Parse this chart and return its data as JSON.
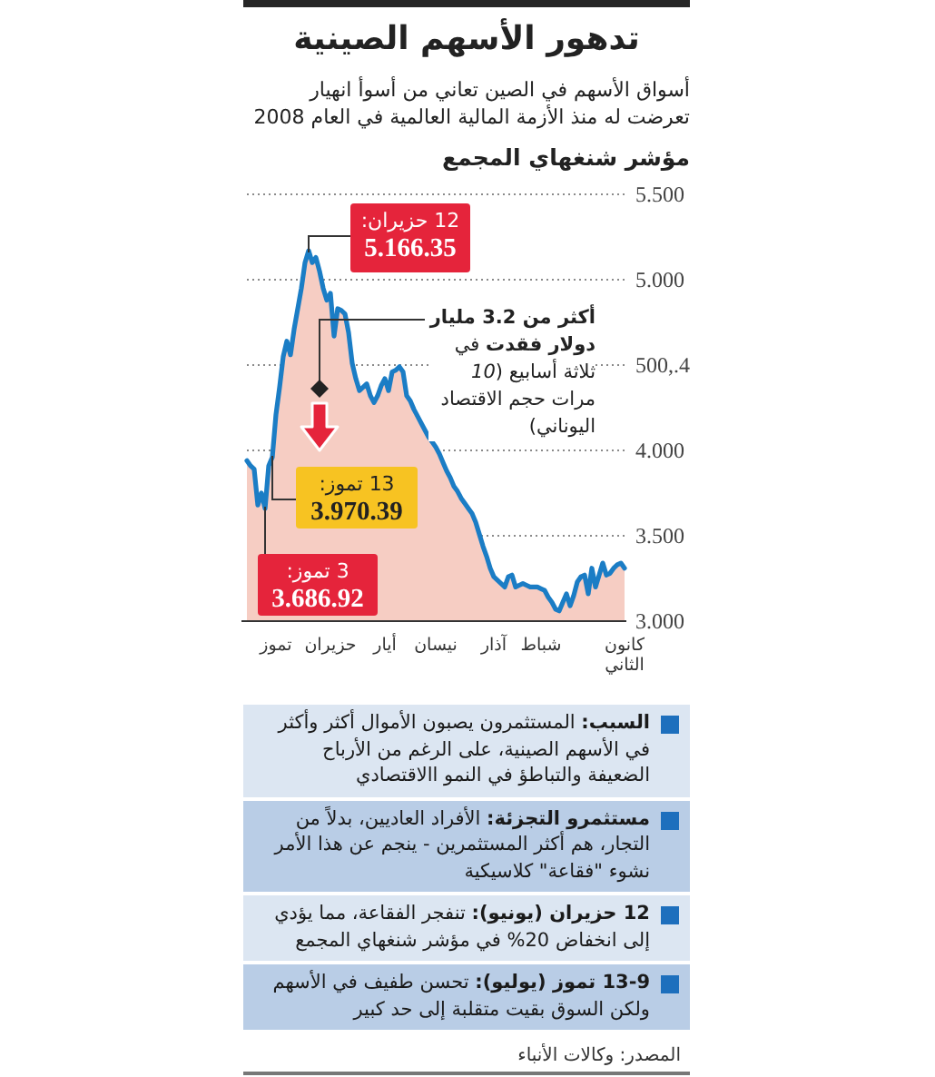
{
  "chart_data": {
    "type": "area",
    "title": "تدهور الأسهم الصينية",
    "subtitle": "أسواق الأسهم في الصين تعاني من أسوأ انهيار تعرضت له منذ الأزمة المالية العالمية في العام 2008",
    "ylabel": "مؤشر شنغهاي المجمع",
    "categories": [
      null,
      null,
      null,
      null,
      null,
      null,
      null,
      null,
      "تموز",
      null,
      null,
      null,
      null,
      null,
      null,
      null,
      null,
      null,
      null,
      null,
      null,
      null,
      null,
      "حزيران",
      null,
      null,
      null,
      null,
      null,
      null,
      null,
      null,
      null,
      null,
      null,
      null,
      null,
      null,
      "أيار",
      null,
      null,
      null,
      null,
      null,
      null,
      null,
      null,
      null,
      null,
      null,
      null,
      null,
      "نيسان",
      null,
      null,
      null,
      null,
      null,
      null,
      null,
      null,
      null,
      null,
      null,
      null,
      null,
      null,
      null,
      "آذار",
      null,
      null,
      null,
      null,
      null,
      null,
      null,
      null,
      null,
      null,
      null,
      null,
      "شباط",
      null,
      null,
      null,
      null,
      null,
      null,
      null,
      null,
      null,
      null,
      null,
      null,
      null,
      null,
      null,
      null,
      null,
      null,
      null,
      null,
      null,
      null,
      "كانون الثاني"
    ],
    "series": [
      {
        "color": "#f6cdc3",
        "values": [
          3940,
          3910,
          3890,
          3680,
          3750,
          3660,
          3910,
          3960,
          4210,
          4370,
          4550,
          4640,
          4560,
          4710,
          4830,
          4950,
          5100,
          5170,
          5100,
          5130,
          5050,
          4950,
          4880,
          4920,
          4670,
          4830,
          4820,
          4800,
          4690,
          4510,
          4420,
          4350,
          4370,
          4390,
          4320,
          4280,
          4320,
          4380,
          4420,
          4350,
          4460,
          4470,
          4490,
          4460,
          4320,
          4290,
          4240,
          4200,
          4160,
          4120,
          4080,
          4050,
          4020,
          3980,
          3930,
          3880,
          3840,
          3790,
          3760,
          3720,
          3690,
          3660,
          3630,
          3580,
          3510,
          3440,
          3380,
          3310,
          3260,
          3240,
          3220,
          3200,
          3260,
          3270,
          3200,
          3210,
          3220,
          3210,
          3200,
          3200,
          3200,
          3190,
          3180,
          3140,
          3110,
          3070,
          3060,
          3110,
          3160,
          3090,
          3150,
          3230,
          3260,
          3270,
          3160,
          3310,
          3200,
          3270,
          3340,
          3270,
          3280,
          3310,
          3330,
          3340,
          3310
        ]
      },
      {
        "type": "line",
        "color": "#1b7dc5",
        "values": [
          3940,
          3910,
          3890,
          3680,
          3750,
          3660,
          3910,
          3960,
          4210,
          4370,
          4550,
          4640,
          4560,
          4710,
          4830,
          4950,
          5100,
          5170,
          5100,
          5130,
          5050,
          4950,
          4880,
          4920,
          4670,
          4830,
          4820,
          4800,
          4690,
          4510,
          4420,
          4350,
          4370,
          4390,
          4320,
          4280,
          4320,
          4380,
          4420,
          4350,
          4460,
          4470,
          4490,
          4460,
          4320,
          4290,
          4240,
          4200,
          4160,
          4120,
          4080,
          4050,
          4020,
          3980,
          3930,
          3880,
          3840,
          3790,
          3760,
          3720,
          3690,
          3660,
          3630,
          3580,
          3510,
          3440,
          3380,
          3310,
          3260,
          3240,
          3220,
          3200,
          3260,
          3270,
          3200,
          3210,
          3220,
          3210,
          3200,
          3200,
          3200,
          3190,
          3180,
          3140,
          3110,
          3070,
          3060,
          3110,
          3160,
          3090,
          3150,
          3230,
          3260,
          3270,
          3160,
          3310,
          3200,
          3270,
          3340,
          3270,
          3280,
          3310,
          3330,
          3340,
          3310
        ]
      }
    ],
    "ylim": [
      3000,
      5500
    ],
    "yticks": [
      {
        "value": 3000,
        "label": "3.000"
      },
      {
        "value": 3500,
        "label": "3.500"
      },
      {
        "value": 4000,
        "label": "4.000"
      },
      {
        "value": 4500,
        "label": "500,.4"
      },
      {
        "value": 5000,
        "label": "5.000"
      },
      {
        "value": 5500,
        "label": "5.500"
      }
    ],
    "grid": "y",
    "annotations": [
      "12 حزيران:\n5.166.35",
      "13 تموز:\n3.970.39",
      "3 تموز:\n3.686.92",
      "**أكثر من 3.2 مليار دولار فقدت** في ثلاثة أسابيع (*10* مرات حجم الاقتصاد اليوناني)",
      "**السبب:** المستثمرون يصبون الأموال أكثر وأكثر في الأسهم الصينية، على الرغم من الأرباح الضعيفة والتباطؤ في النمو االاقتصادي",
      "**مستثمرو التجزئة:** الأفراد العاديين، بدلاً من التجار، هم أكثر المستثمرين - ينجم عن هذا الأمر نشوء \"فقاعة\" كلاسيكية",
      "**12 حزيران (يونيو):** تنفجر الفقاعة، مما يؤدي إلى انخفاض 20% في مؤشر شنغهاي المجمع",
      "**13-9 تموز (يوليو):** تحسن طفيف في الأسهم ولكن السوق بقيت متقلبة إلى حد كبير",
      "المصدر: وكالات الأنباء"
    ]
  }
}
